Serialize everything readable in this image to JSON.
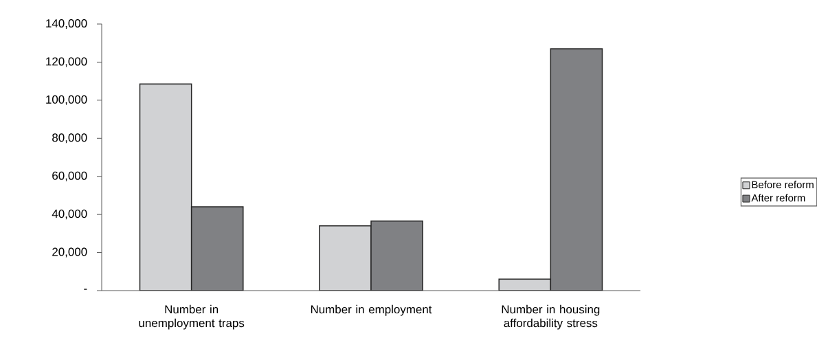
{
  "chart_data": {
    "type": "bar",
    "categories": [
      "Number in unemployment traps",
      "Number in employment",
      "Number in housing affordability stress"
    ],
    "series": [
      {
        "name": "Before reform",
        "color": "#d1d2d4",
        "values": [
          108500,
          34000,
          6000
        ]
      },
      {
        "name": "After reform",
        "color": "#808184",
        "values": [
          44000,
          36500,
          127000
        ]
      }
    ],
    "ylim": [
      0,
      140000
    ],
    "yticks": [
      {
        "value": 0,
        "label": "-"
      },
      {
        "value": 20000,
        "label": "20,000"
      },
      {
        "value": 40000,
        "label": "40,000"
      },
      {
        "value": 60000,
        "label": "60,000"
      },
      {
        "value": 80000,
        "label": "80,000"
      },
      {
        "value": 100000,
        "label": "100,000"
      },
      {
        "value": 120000,
        "label": "120,000"
      },
      {
        "value": 140000,
        "label": "140,000"
      }
    ],
    "grid": false,
    "legend": "right"
  }
}
